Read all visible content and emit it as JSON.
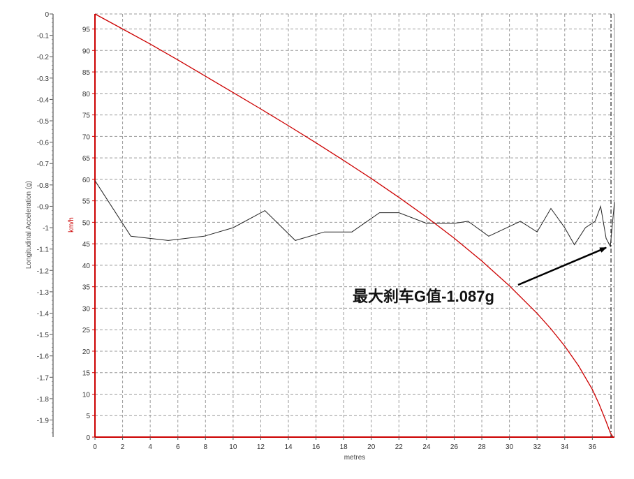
{
  "chart_data": {
    "type": "line",
    "xlabel": "metres",
    "x_ticks": [
      "0",
      "2",
      "4",
      "6",
      "8",
      "10",
      "12",
      "14",
      "16",
      "18",
      "20",
      "22",
      "24",
      "26",
      "28",
      "30",
      "32",
      "34",
      "36"
    ],
    "xlim": [
      0,
      37.6
    ],
    "left_axis": {
      "label": "Longitudinal Acceleration (g)",
      "ylim": [
        -1.98,
        0
      ],
      "ticks": [
        "0",
        "-0.1",
        "-0.2",
        "-0.3",
        "-0.4",
        "-0.5",
        "-0.6",
        "-0.7",
        "-0.8",
        "-0.9",
        "-1",
        "-1.1",
        "-1.2",
        "-1.3",
        "-1.4",
        "-1.5",
        "-1.6",
        "-1.7",
        "-1.8",
        "-1.9"
      ],
      "tick_values": [
        0,
        -0.1,
        -0.2,
        -0.3,
        -0.4,
        -0.5,
        -0.6,
        -0.7,
        -0.8,
        -0.9,
        -1,
        -1.1,
        -1.2,
        -1.3,
        -1.4,
        -1.5,
        -1.6,
        -1.7,
        -1.8,
        -1.9
      ]
    },
    "right_axis": {
      "label": "km/h",
      "ylim": [
        0,
        98.5
      ],
      "color": "#cc0000",
      "ticks": [
        "95",
        "90",
        "85",
        "80",
        "75",
        "70",
        "65",
        "60",
        "55",
        "50",
        "45",
        "40",
        "35",
        "30",
        "25",
        "20",
        "15",
        "10",
        "5",
        "0"
      ],
      "tick_values": [
        95,
        90,
        85,
        80,
        75,
        70,
        65,
        60,
        55,
        50,
        45,
        40,
        35,
        30,
        25,
        20,
        15,
        10,
        5,
        0
      ]
    },
    "grid": true,
    "series": [
      {
        "axis": "left",
        "color": "#222222",
        "points": [
          [
            0,
            -0.78
          ],
          [
            2.6,
            -1.04
          ],
          [
            5.3,
            -1.06
          ],
          [
            7.9,
            -1.04
          ],
          [
            10,
            -1.0
          ],
          [
            12.3,
            -0.92
          ],
          [
            14.5,
            -1.06
          ],
          [
            16.6,
            -1.02
          ],
          [
            18.6,
            -1.02
          ],
          [
            20.6,
            -0.93
          ],
          [
            22,
            -0.93
          ],
          [
            24,
            -0.98
          ],
          [
            26,
            -0.98
          ],
          [
            27,
            -0.97
          ],
          [
            28.5,
            -1.04
          ],
          [
            30.8,
            -0.97
          ],
          [
            32,
            -1.02
          ],
          [
            33,
            -0.91
          ],
          [
            34,
            -1.0
          ],
          [
            34.7,
            -1.08
          ],
          [
            35.5,
            -1.0
          ],
          [
            36.2,
            -0.97
          ],
          [
            36.6,
            -0.9
          ],
          [
            37.0,
            -1.05
          ],
          [
            37.3,
            -1.087
          ],
          [
            37.6,
            -0.88
          ]
        ]
      },
      {
        "axis": "right",
        "color": "#cc0000",
        "points": [
          [
            0,
            98.5
          ],
          [
            2,
            95.0
          ],
          [
            4,
            91.5
          ],
          [
            6,
            87.8
          ],
          [
            8,
            84.0
          ],
          [
            10,
            80.2
          ],
          [
            12,
            76.4
          ],
          [
            14,
            72.5
          ],
          [
            16,
            68.5
          ],
          [
            18,
            64.4
          ],
          [
            20,
            60.2
          ],
          [
            22,
            55.8
          ],
          [
            24,
            51.2
          ],
          [
            26,
            46.3
          ],
          [
            28,
            41.0
          ],
          [
            30,
            35.2
          ],
          [
            32,
            28.8
          ],
          [
            33,
            25.2
          ],
          [
            34,
            21.2
          ],
          [
            35,
            16.6
          ],
          [
            36,
            11.1
          ],
          [
            36.5,
            7.6
          ],
          [
            37,
            3.6
          ],
          [
            37.3,
            1.0
          ],
          [
            37.5,
            0
          ]
        ]
      }
    ],
    "marker_x": 37.35,
    "annotation": {
      "text": "最大刹车G值-1.087g",
      "arrow_to": [
        37.3,
        -1.087
      ]
    }
  }
}
